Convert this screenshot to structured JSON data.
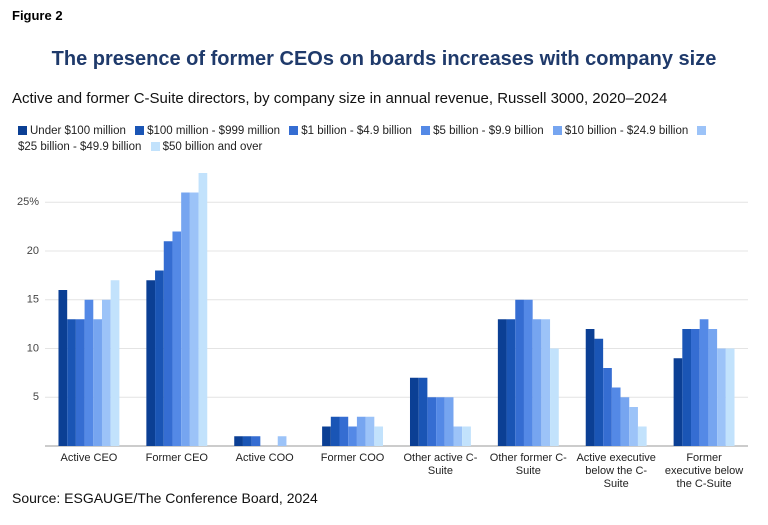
{
  "figure_label": "Figure 2",
  "source": "Source: ESGAUGE/The Conference Board, 2024",
  "chart_data": {
    "type": "bar",
    "title": "The presence of former CEOs on boards increases with company size",
    "subtitle": "Active and former C-Suite directors, by company size in annual revenue, Russell 3000, 2020–2024",
    "categories": [
      "Active CEO",
      "Former CEO",
      "Active COO",
      "Former COO",
      "Other active C-Suite",
      "Other former C-Suite",
      "Active executive below the C-Suite",
      "Former executive below the C-Suite"
    ],
    "series": [
      {
        "name": "Under $100 million",
        "color": "#0b3f94",
        "values": [
          16,
          17,
          1,
          2,
          7,
          13,
          12,
          9
        ]
      },
      {
        "name": "$100 million - $999 million",
        "color": "#1a55b5",
        "values": [
          13,
          18,
          1,
          3,
          7,
          13,
          11,
          12
        ]
      },
      {
        "name": "$1 billion - $4.9 billion",
        "color": "#356dd2",
        "values": [
          13,
          21,
          1,
          3,
          5,
          15,
          8,
          12
        ]
      },
      {
        "name": "$5 billion - $9.9 billion",
        "color": "#5489e6",
        "values": [
          15,
          22,
          0,
          2,
          5,
          15,
          6,
          13
        ]
      },
      {
        "name": "$10 billion - $24.9 billion",
        "color": "#76a5f0",
        "values": [
          13,
          26,
          0,
          3,
          5,
          13,
          5,
          12
        ]
      },
      {
        "name": "$25 billion - $49.9 billion",
        "color": "#9cc3f8",
        "values": [
          15,
          26,
          1,
          3,
          2,
          13,
          4,
          10
        ]
      },
      {
        "name": "$50 billion and over",
        "color": "#c2e2fc",
        "values": [
          17,
          28,
          0,
          2,
          2,
          10,
          2,
          10
        ]
      }
    ],
    "ylim": [
      0,
      28
    ],
    "yticks": [
      5,
      10,
      15,
      20,
      {
        "value": 25,
        "label": "25%"
      }
    ],
    "grid": true
  }
}
